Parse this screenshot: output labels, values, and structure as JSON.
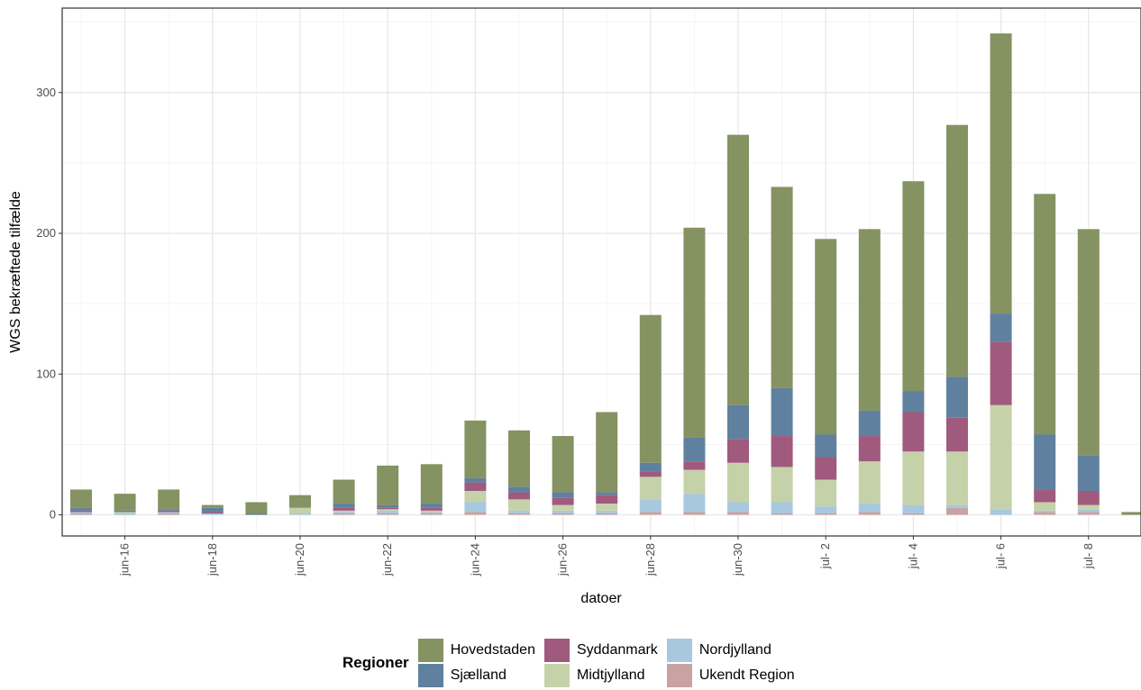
{
  "chart_data": {
    "type": "bar",
    "stacked": true,
    "xlabel": "datoer",
    "ylabel": "WGS bekræftede tilfælde",
    "ylim": [
      -15,
      360
    ],
    "yticks": [
      0,
      100,
      200,
      300
    ],
    "grid": true,
    "x_tick_labels": [
      "jun-16",
      "jun-18",
      "jun-20",
      "jun-22",
      "jun-24",
      "jun-26",
      "jun-28",
      "jun-30",
      "jul- 2",
      "jul- 4",
      "jul- 6",
      "jul- 8"
    ],
    "categories": [
      "jun-15",
      "jun-16",
      "jun-17",
      "jun-18",
      "jun-19",
      "jun-20",
      "jun-21",
      "jun-22",
      "jun-23",
      "jun-24",
      "jun-25",
      "jun-26",
      "jun-27",
      "jun-28",
      "jun-29",
      "jun-30",
      "jul- 1",
      "jul- 2",
      "jul- 3",
      "jul- 4",
      "jul- 5",
      "jul- 6",
      "jul- 7",
      "jul- 8",
      "jul- 9"
    ],
    "series": [
      {
        "name": "Ukendt Region",
        "color": "#c9a3a3",
        "values": [
          1,
          0,
          1,
          0,
          0,
          0,
          1,
          1,
          1,
          2,
          1,
          1,
          1,
          2,
          2,
          2,
          1,
          1,
          2,
          1,
          5,
          0,
          2,
          2,
          0
        ]
      },
      {
        "name": "Nordjylland",
        "color": "#a7c8df",
        "values": [
          1,
          1,
          1,
          1,
          0,
          1,
          1,
          2,
          1,
          7,
          2,
          2,
          2,
          9,
          13,
          7,
          8,
          5,
          6,
          6,
          2,
          4,
          1,
          2,
          0
        ]
      },
      {
        "name": "Midtjylland",
        "color": "#c5d2a9",
        "values": [
          0,
          1,
          0,
          0,
          0,
          4,
          1,
          1,
          1,
          8,
          8,
          4,
          5,
          16,
          17,
          28,
          25,
          19,
          30,
          38,
          38,
          74,
          6,
          3,
          0
        ]
      },
      {
        "name": "Syddanmark",
        "color": "#a05a7d",
        "values": [
          1,
          0,
          1,
          1,
          0,
          0,
          2,
          1,
          2,
          6,
          5,
          5,
          6,
          4,
          6,
          17,
          22,
          16,
          18,
          28,
          24,
          45,
          9,
          10,
          0
        ]
      },
      {
        "name": "Sjælland",
        "color": "#5f819f",
        "values": [
          2,
          1,
          1,
          3,
          1,
          0,
          3,
          2,
          3,
          3,
          4,
          4,
          2,
          6,
          17,
          24,
          34,
          16,
          18,
          15,
          29,
          20,
          39,
          25,
          0
        ]
      },
      {
        "name": "Hovedstaden",
        "color": "#859261",
        "values": [
          13,
          12,
          14,
          2,
          8,
          9,
          17,
          28,
          28,
          41,
          40,
          40,
          57,
          105,
          149,
          192,
          143,
          139,
          129,
          149,
          179,
          199,
          171,
          161,
          2
        ]
      }
    ]
  },
  "legend": {
    "title": "Regioner",
    "items": [
      {
        "name": "Hovedstaden",
        "color": "#859261"
      },
      {
        "name": "Sjælland",
        "color": "#5f819f"
      },
      {
        "name": "Syddanmark",
        "color": "#a05a7d"
      },
      {
        "name": "Midtjylland",
        "color": "#c5d2a9"
      },
      {
        "name": "Nordjylland",
        "color": "#a7c8df"
      },
      {
        "name": "Ukendt Region",
        "color": "#c9a3a3"
      }
    ]
  }
}
